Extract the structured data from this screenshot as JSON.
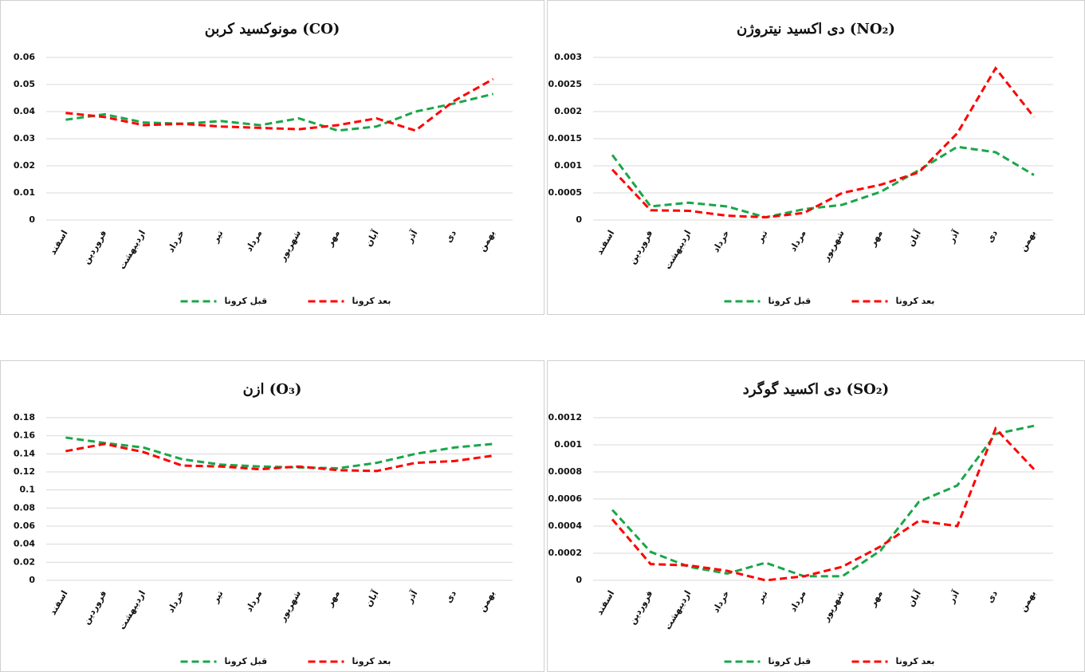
{
  "chart_data": [
    {
      "type": "line",
      "title": "مونوکسید کربن (CO)",
      "categories": [
        "اسفند",
        "فروردین",
        "اردیبهشت",
        "خرداد",
        "تیر",
        "مرداد",
        "شهریور",
        "مهر",
        "آبان",
        "آذر",
        "دی",
        "بهمن"
      ],
      "series": [
        {
          "name": "قبل کرونا",
          "color": "#1aa64a",
          "values": [
            0.037,
            0.039,
            0.036,
            0.0355,
            0.0365,
            0.035,
            0.0375,
            0.033,
            0.0345,
            0.04,
            0.043,
            0.0465
          ]
        },
        {
          "name": "بعد کرونا",
          "color": "#ff0000",
          "values": [
            0.0395,
            0.038,
            0.035,
            0.0355,
            0.0345,
            0.034,
            0.0335,
            0.035,
            0.0375,
            0.033,
            0.044,
            0.052
          ]
        }
      ],
      "ylim": [
        0,
        0.06
      ],
      "yticks": [
        0,
        0.01,
        0.02,
        0.03,
        0.04,
        0.05,
        0.06
      ],
      "grid": true
    },
    {
      "type": "line",
      "title": "دی اکسید نیتروژن (NO₂)",
      "categories": [
        "اسفند",
        "فروردین",
        "اردیبهشت",
        "خرداد",
        "تیر",
        "مرداد",
        "شهریور",
        "مهر",
        "آبان",
        "آذر",
        "دی",
        "بهمن"
      ],
      "series": [
        {
          "name": "قبل کرونا",
          "color": "#1aa64a",
          "values": [
            0.0012,
            0.00025,
            0.00032,
            0.00025,
            5e-05,
            0.0002,
            0.00028,
            0.00052,
            0.00092,
            0.00135,
            0.00125,
            0.00083
          ]
        },
        {
          "name": "بعد کرونا",
          "color": "#ff0000",
          "values": [
            0.00093,
            0.00018,
            0.00017,
            8e-05,
            5e-05,
            0.00013,
            0.0005,
            0.00065,
            0.00088,
            0.0016,
            0.0028,
            0.0019
          ]
        }
      ],
      "ylim": [
        0,
        0.003
      ],
      "yticks": [
        0,
        0.0005,
        0.001,
        0.0015,
        0.002,
        0.0025,
        0.003
      ],
      "grid": true
    },
    {
      "type": "line",
      "title": "ازن (O₃)",
      "categories": [
        "اسفند",
        "فروردین",
        "اردیبهشت",
        "خرداد",
        "تیر",
        "مرداد",
        "شهریور",
        "مهر",
        "آبان",
        "آذر",
        "دی",
        "بهمن"
      ],
      "series": [
        {
          "name": "قبل کرونا",
          "color": "#1aa64a",
          "values": [
            0.158,
            0.152,
            0.147,
            0.134,
            0.128,
            0.126,
            0.125,
            0.124,
            0.13,
            0.14,
            0.147,
            0.151
          ]
        },
        {
          "name": "بعد کرونا",
          "color": "#ff0000",
          "values": [
            0.143,
            0.151,
            0.142,
            0.127,
            0.126,
            0.123,
            0.126,
            0.122,
            0.121,
            0.13,
            0.132,
            0.138
          ]
        }
      ],
      "ylim": [
        0,
        0.18
      ],
      "yticks": [
        0,
        0.02,
        0.04,
        0.06,
        0.08,
        0.1,
        0.12,
        0.14,
        0.16,
        0.18
      ],
      "grid": true
    },
    {
      "type": "line",
      "title": "دی اکسید گوگرد (SO₂)",
      "categories": [
        "اسفند",
        "فروردین",
        "اردیبهشت",
        "خرداد",
        "تیر",
        "مرداد",
        "شهریور",
        "مهر",
        "آبان",
        "آذر",
        "دی",
        "بهمن"
      ],
      "series": [
        {
          "name": "قبل کرونا",
          "color": "#1aa64a",
          "values": [
            0.00052,
            0.00021,
            0.0001,
            5e-05,
            0.00013,
            3e-05,
            3e-05,
            0.00022,
            0.00058,
            0.0007,
            0.00108,
            0.00114
          ]
        },
        {
          "name": "بعد کرونا",
          "color": "#ff0000",
          "values": [
            0.00045,
            0.00012,
            0.00011,
            7e-05,
            0,
            3e-05,
            0.0001,
            0.00025,
            0.00044,
            0.0004,
            0.00112,
            0.00082
          ]
        }
      ],
      "ylim": [
        0,
        0.0012
      ],
      "yticks": [
        0,
        0.0002,
        0.0004,
        0.0006,
        0.0008,
        0.001,
        0.0012
      ],
      "grid": true
    }
  ]
}
